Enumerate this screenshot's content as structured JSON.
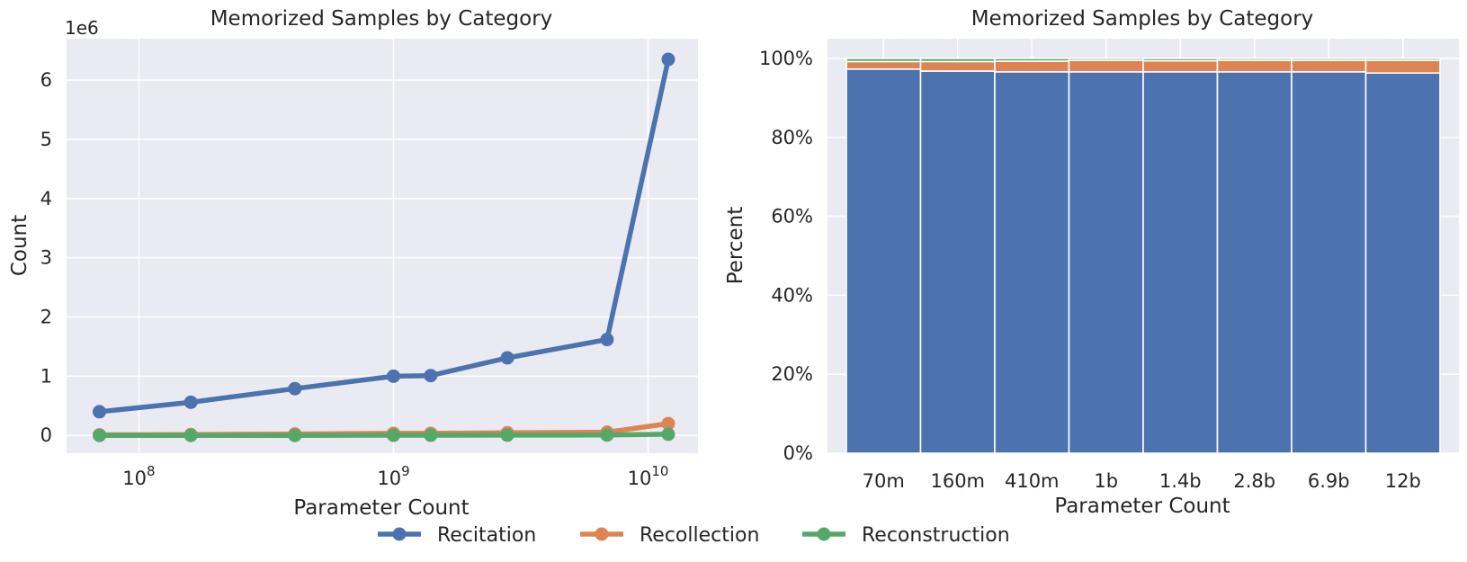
{
  "figure": {
    "colors": {
      "recitation": "#4c72b0",
      "recollection": "#dd8452",
      "reconstruction": "#55a868",
      "panel_bg": "#eaeaf2",
      "grid": "#ffffff"
    },
    "legend": {
      "items": [
        {
          "label": "Recitation",
          "color": "#4c72b0"
        },
        {
          "label": "Recollection",
          "color": "#dd8452"
        },
        {
          "label": "Reconstruction",
          "color": "#55a868"
        }
      ],
      "placement": "bottom-center"
    }
  },
  "chart_data": [
    {
      "type": "line",
      "title": "Memorized Samples by Category",
      "xlabel": "Parameter Count",
      "ylabel": "Count",
      "xscale": "log",
      "y_offset_label": "1e6",
      "xlim": [
        52000000,
        15700000000
      ],
      "ylim": [
        -0.3,
        6.7
      ],
      "xticks": [
        100000000,
        1000000000,
        10000000000
      ],
      "xtick_labels": [
        {
          "base": "10",
          "exp": "8"
        },
        {
          "base": "10",
          "exp": "9"
        },
        {
          "base": "10",
          "exp": "10"
        }
      ],
      "yticks": [
        0,
        1,
        2,
        3,
        4,
        5,
        6
      ],
      "ytick_labels": [
        "0",
        "1",
        "2",
        "3",
        "4",
        "5",
        "6"
      ],
      "x": [
        70000000,
        160000000,
        410000000,
        1000000000,
        1400000000,
        2800000000,
        6900000000,
        12000000000
      ],
      "series": [
        {
          "name": "Recitation",
          "values": [
            0.4,
            0.56,
            0.79,
            1.0,
            1.01,
            1.31,
            1.62,
            6.35
          ]
        },
        {
          "name": "Recollection",
          "values": [
            0.01,
            0.015,
            0.025,
            0.035,
            0.035,
            0.045,
            0.055,
            0.2
          ]
        },
        {
          "name": "Reconstruction",
          "values": [
            0.0,
            0.0,
            0.0,
            0.003,
            0.003,
            0.005,
            0.006,
            0.02
          ]
        }
      ],
      "grid": true
    },
    {
      "type": "bar",
      "stacked": true,
      "title": "Memorized Samples by Category",
      "xlabel": "Parameter Count",
      "ylabel": "Percent",
      "ylim": [
        0,
        1.05
      ],
      "yticks": [
        0,
        0.2,
        0.4,
        0.6,
        0.8,
        1.0
      ],
      "ytick_labels": [
        "0%",
        "20%",
        "40%",
        "60%",
        "80%",
        "100%"
      ],
      "categories": [
        "70m",
        "160m",
        "410m",
        "1b",
        "1.4b",
        "2.8b",
        "6.9b",
        "12b"
      ],
      "series": [
        {
          "name": "Recitation",
          "values": [
            0.973,
            0.968,
            0.966,
            0.966,
            0.966,
            0.966,
            0.966,
            0.963
          ]
        },
        {
          "name": "Recollection",
          "values": [
            0.019,
            0.024,
            0.027,
            0.029,
            0.028,
            0.029,
            0.029,
            0.032
          ]
        },
        {
          "name": "Reconstruction",
          "values": [
            0.008,
            0.008,
            0.007,
            0.005,
            0.006,
            0.005,
            0.005,
            0.005
          ]
        }
      ],
      "grid": true
    }
  ]
}
